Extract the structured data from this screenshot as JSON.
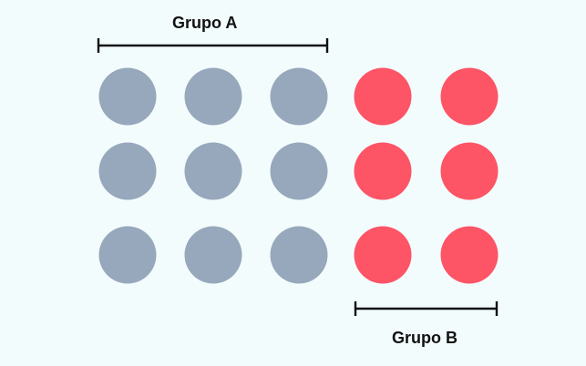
{
  "diagram": {
    "background_color": "#f3fcfd",
    "groups": [
      {
        "id": "a",
        "label": "Grupo A",
        "color": "#97a8bc",
        "rows": 3,
        "columns": 3
      },
      {
        "id": "b",
        "label": "Grupo B",
        "color": "#fd5466",
        "rows": 3,
        "columns": 2
      }
    ]
  }
}
